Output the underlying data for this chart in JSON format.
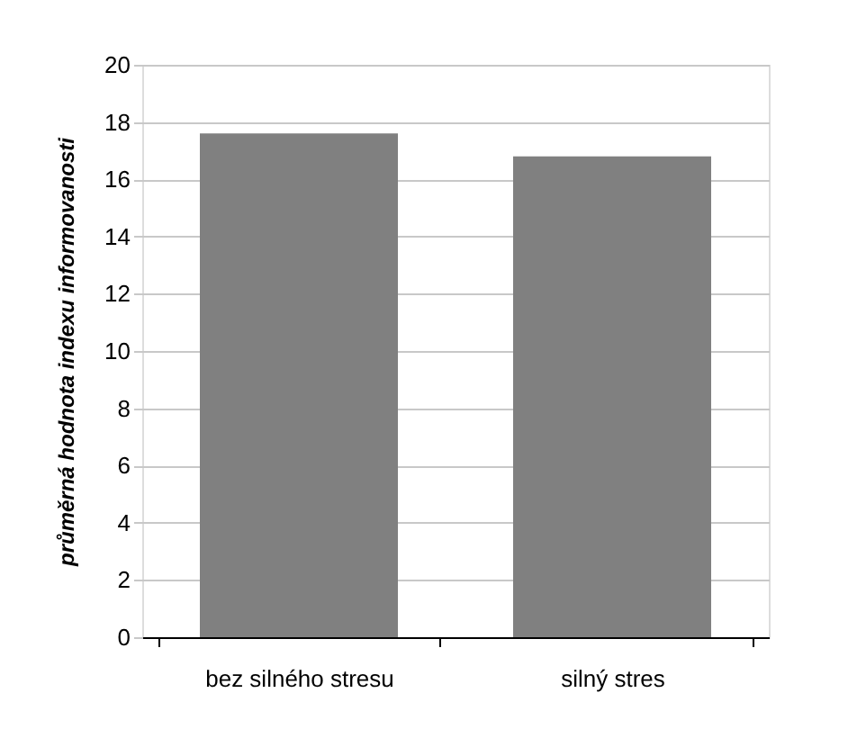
{
  "chart_data": {
    "type": "bar",
    "ylabel": "průměrná hodnota indexu informovanosti",
    "categories": [
      "bez silného stresu",
      "silný stres"
    ],
    "values": [
      17.6,
      16.8
    ],
    "color": "#808080",
    "ylim": [
      0,
      20
    ],
    "yticks": [
      0,
      2,
      4,
      6,
      8,
      10,
      12,
      14,
      16,
      18,
      20
    ],
    "grid": "y"
  }
}
